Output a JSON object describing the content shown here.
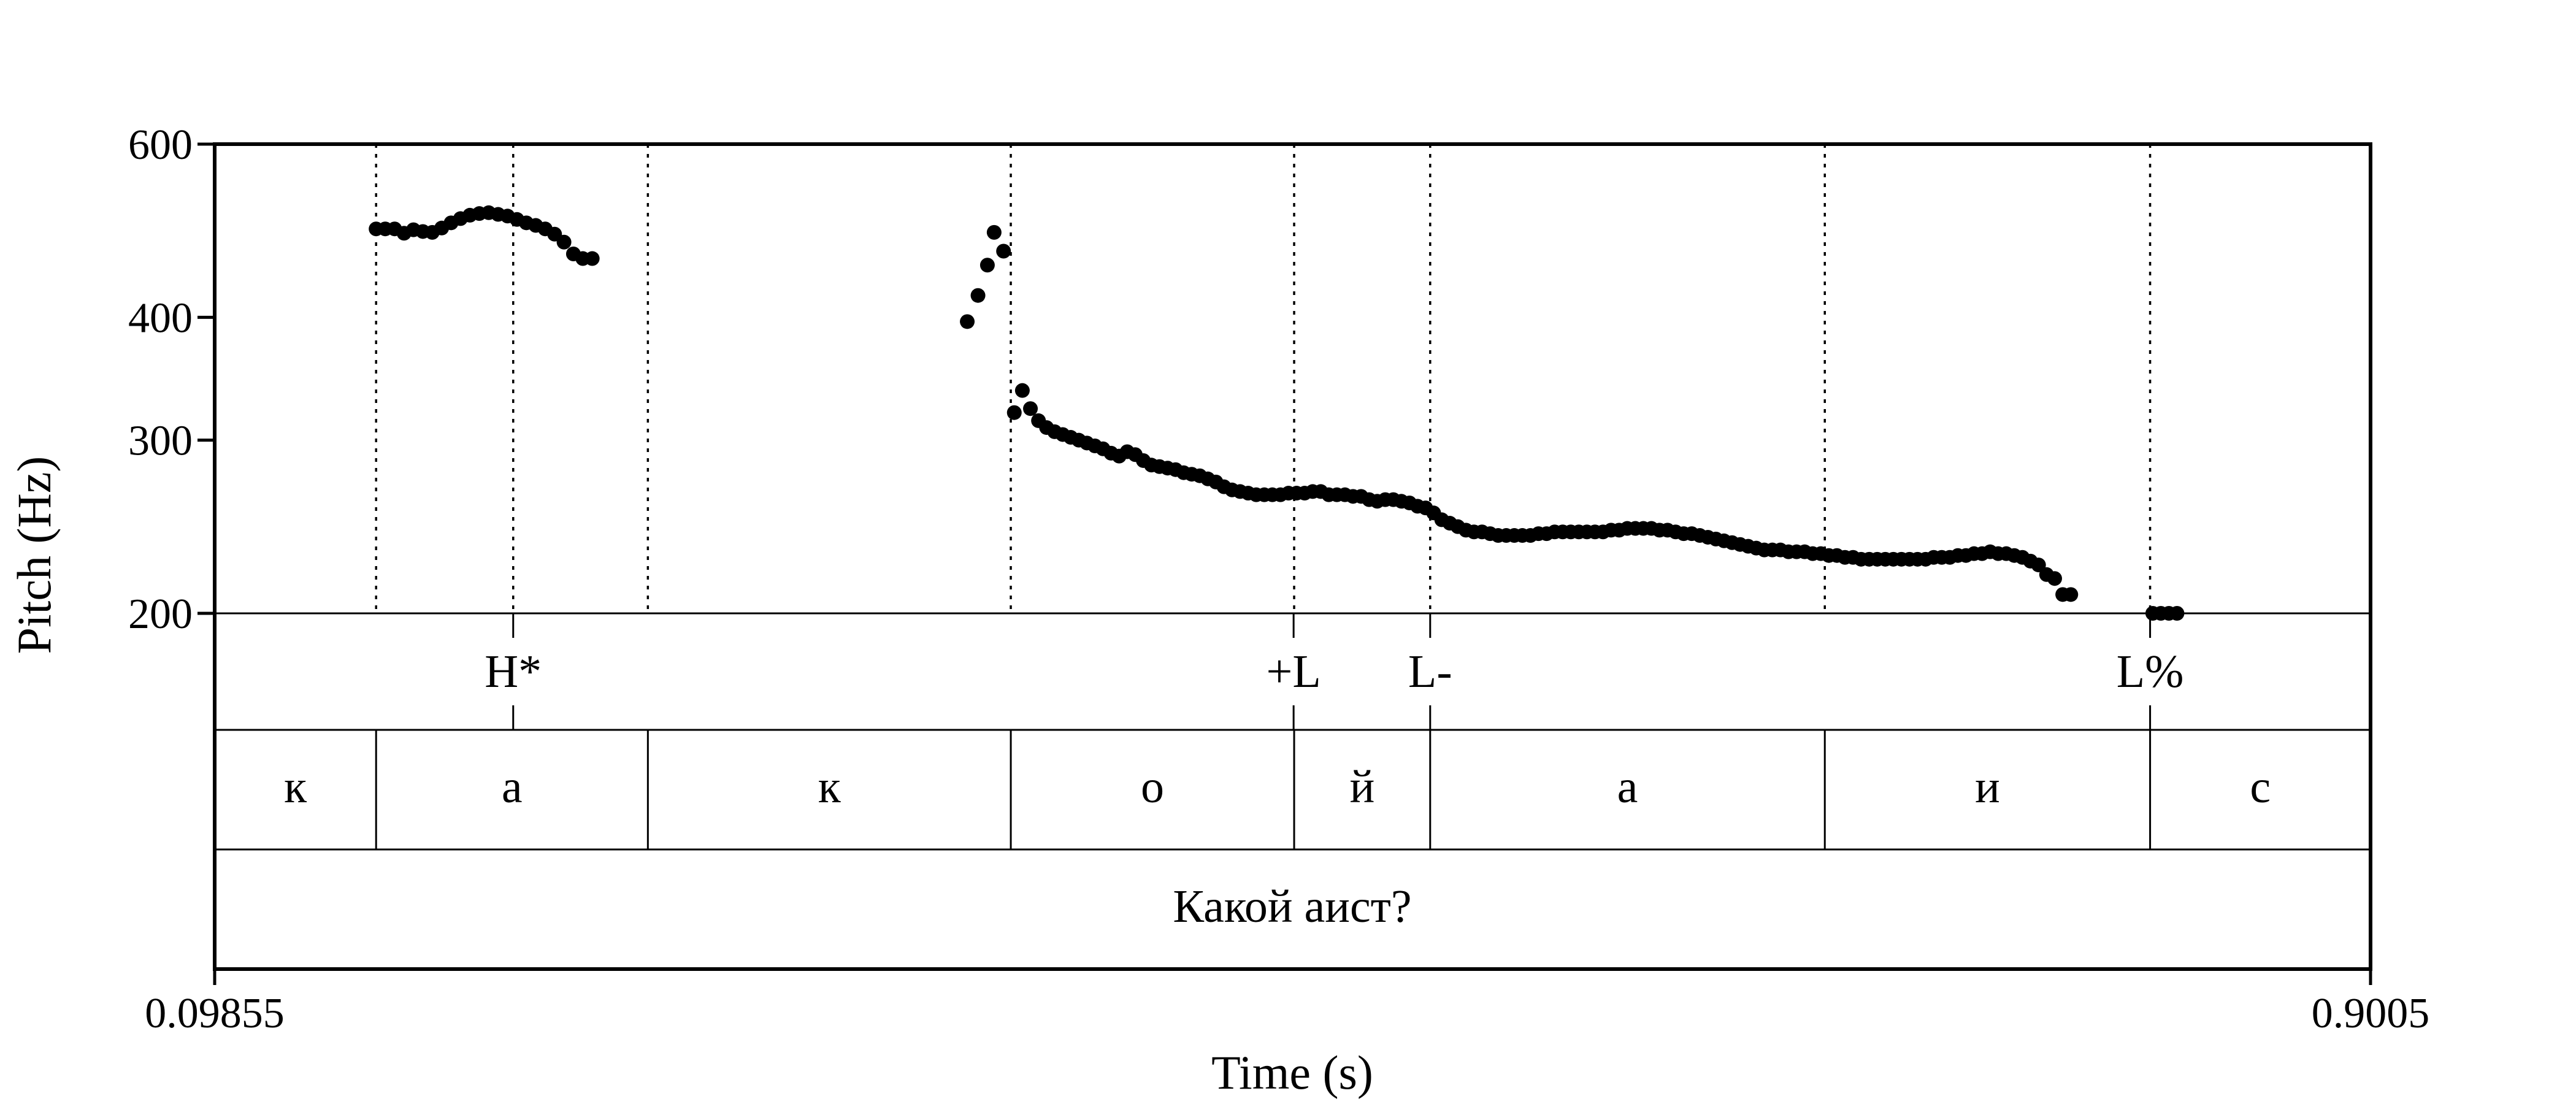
{
  "chart_data": {
    "type": "scatter",
    "xlabel": "Time (s)",
    "ylabel": "Pitch (Hz)",
    "xlim": [
      0.09855,
      0.9005
    ],
    "ylim": [
      200,
      600
    ],
    "x_tick_labels": [
      "0.09855",
      "0.9005"
    ],
    "yticks": [
      200,
      300,
      400,
      600
    ],
    "y_tick_labels": [
      "200",
      "300",
      "400",
      "600"
    ],
    "y_scale": "log",
    "grid": false,
    "segment_boundaries": [
      0.1586,
      0.2597,
      0.3947,
      0.5001,
      0.5507,
      0.6975,
      0.8185
    ],
    "tones": [
      {
        "label": "H*",
        "time": 0.2096
      },
      {
        "label": "+L",
        "time": 0.4999
      },
      {
        "label": "L-",
        "time": 0.5507
      },
      {
        "label": "L%",
        "time": 0.8185
      }
    ],
    "segments": [
      {
        "label": "к",
        "start": 0.09855,
        "end": 0.1586
      },
      {
        "label": "а",
        "start": 0.1586,
        "end": 0.2597
      },
      {
        "label": "к",
        "start": 0.2597,
        "end": 0.3947
      },
      {
        "label": "о",
        "start": 0.3947,
        "end": 0.5001
      },
      {
        "label": "й",
        "start": 0.5001,
        "end": 0.5507
      },
      {
        "label": "а",
        "start": 0.5507,
        "end": 0.6975
      },
      {
        "label": "и",
        "start": 0.6975,
        "end": 0.8185
      },
      {
        "label": "с",
        "start": 0.8185,
        "end": 0.9005
      }
    ],
    "sentence": {
      "label": "Какой аист?",
      "start": 0.09855,
      "end": 0.9005
    },
    "series": [
      {
        "points": [
          [
            0.1586,
            492
          ],
          [
            0.162,
            492
          ],
          [
            0.1655,
            492
          ],
          [
            0.169,
            487
          ],
          [
            0.1725,
            491
          ],
          [
            0.176,
            489
          ],
          [
            0.1795,
            488
          ],
          [
            0.183,
            493
          ],
          [
            0.1865,
            499
          ],
          [
            0.19,
            504
          ],
          [
            0.1935,
            508
          ],
          [
            0.197,
            510
          ],
          [
            0.2005,
            511
          ],
          [
            0.204,
            509
          ],
          [
            0.2075,
            507
          ],
          [
            0.211,
            503
          ],
          [
            0.2145,
            499
          ],
          [
            0.218,
            496
          ],
          [
            0.2215,
            492
          ],
          [
            0.225,
            486
          ],
          [
            0.2285,
            477
          ],
          [
            0.232,
            464
          ],
          [
            0.2355,
            459
          ],
          [
            0.239,
            459
          ],
          [
            0.3785,
            396
          ],
          [
            0.3825,
            421
          ],
          [
            0.386,
            452
          ],
          [
            0.3885,
            488
          ],
          [
            0.392,
            467
          ],
          [
            0.396,
            320
          ],
          [
            0.399,
            337
          ],
          [
            0.402,
            323
          ],
          [
            0.405,
            314
          ],
          [
            0.408,
            309
          ],
          [
            0.411,
            306
          ],
          [
            0.414,
            304
          ],
          [
            0.417,
            302
          ],
          [
            0.42,
            300
          ],
          [
            0.423,
            298
          ],
          [
            0.426,
            296
          ],
          [
            0.429,
            294
          ],
          [
            0.432,
            291
          ],
          [
            0.435,
            289
          ],
          [
            0.438,
            292
          ],
          [
            0.441,
            290
          ],
          [
            0.444,
            286
          ],
          [
            0.447,
            283
          ],
          [
            0.45,
            282
          ],
          [
            0.453,
            281
          ],
          [
            0.456,
            280
          ],
          [
            0.459,
            278
          ],
          [
            0.462,
            277
          ],
          [
            0.465,
            276
          ],
          [
            0.468,
            274
          ],
          [
            0.471,
            272
          ],
          [
            0.474,
            269
          ],
          [
            0.477,
            267
          ],
          [
            0.48,
            266
          ],
          [
            0.483,
            265
          ],
          [
            0.486,
            264
          ],
          [
            0.489,
            264
          ],
          [
            0.492,
            264
          ],
          [
            0.495,
            264
          ],
          [
            0.498,
            265
          ],
          [
            0.501,
            265
          ],
          [
            0.504,
            265
          ],
          [
            0.507,
            266
          ],
          [
            0.51,
            266
          ],
          [
            0.513,
            264
          ],
          [
            0.516,
            264
          ],
          [
            0.519,
            264
          ],
          [
            0.522,
            263
          ],
          [
            0.525,
            263
          ],
          [
            0.528,
            261
          ],
          [
            0.531,
            260
          ],
          [
            0.534,
            261
          ],
          [
            0.537,
            261
          ],
          [
            0.54,
            260
          ],
          [
            0.543,
            259
          ],
          [
            0.546,
            257
          ],
          [
            0.549,
            256
          ],
          [
            0.552,
            253
          ],
          [
            0.555,
            249
          ],
          [
            0.558,
            247
          ],
          [
            0.561,
            245
          ],
          [
            0.564,
            243
          ],
          [
            0.567,
            242
          ],
          [
            0.57,
            242
          ],
          [
            0.573,
            241
          ],
          [
            0.576,
            240
          ],
          [
            0.579,
            240
          ],
          [
            0.582,
            240
          ],
          [
            0.585,
            240
          ],
          [
            0.588,
            240
          ],
          [
            0.591,
            241
          ],
          [
            0.594,
            241
          ],
          [
            0.597,
            242
          ],
          [
            0.6,
            242
          ],
          [
            0.603,
            242
          ],
          [
            0.606,
            242
          ],
          [
            0.609,
            242
          ],
          [
            0.612,
            242
          ],
          [
            0.615,
            242
          ],
          [
            0.618,
            243
          ],
          [
            0.621,
            243
          ],
          [
            0.624,
            244
          ],
          [
            0.627,
            244
          ],
          [
            0.63,
            244
          ],
          [
            0.633,
            244
          ],
          [
            0.636,
            243
          ],
          [
            0.639,
            243
          ],
          [
            0.642,
            242
          ],
          [
            0.645,
            241
          ],
          [
            0.648,
            241
          ],
          [
            0.651,
            240
          ],
          [
            0.654,
            239
          ],
          [
            0.657,
            238
          ],
          [
            0.66,
            237
          ],
          [
            0.663,
            236
          ],
          [
            0.666,
            235
          ],
          [
            0.669,
            234
          ],
          [
            0.672,
            233
          ],
          [
            0.675,
            232
          ],
          [
            0.678,
            232
          ],
          [
            0.681,
            232
          ],
          [
            0.684,
            231
          ],
          [
            0.687,
            231
          ],
          [
            0.69,
            231
          ],
          [
            0.693,
            230
          ],
          [
            0.696,
            230
          ],
          [
            0.699,
            229
          ],
          [
            0.702,
            229
          ],
          [
            0.705,
            228
          ],
          [
            0.708,
            228
          ],
          [
            0.711,
            227
          ],
          [
            0.714,
            227
          ],
          [
            0.717,
            227
          ],
          [
            0.72,
            227
          ],
          [
            0.723,
            227
          ],
          [
            0.726,
            227
          ],
          [
            0.729,
            227
          ],
          [
            0.732,
            227
          ],
          [
            0.735,
            227
          ],
          [
            0.738,
            228
          ],
          [
            0.741,
            228
          ],
          [
            0.744,
            228
          ],
          [
            0.747,
            229
          ],
          [
            0.75,
            229
          ],
          [
            0.753,
            230
          ],
          [
            0.756,
            230
          ],
          [
            0.759,
            231
          ],
          [
            0.762,
            230
          ],
          [
            0.765,
            230
          ],
          [
            0.768,
            229
          ],
          [
            0.771,
            228
          ],
          [
            0.774,
            226
          ],
          [
            0.777,
            224
          ],
          [
            0.78,
            219
          ],
          [
            0.783,
            217
          ],
          [
            0.786,
            209
          ],
          [
            0.789,
            209
          ],
          [
            0.8195,
            200
          ],
          [
            0.8225,
            200
          ],
          [
            0.8255,
            200
          ],
          [
            0.8285,
            200
          ]
        ]
      }
    ]
  }
}
